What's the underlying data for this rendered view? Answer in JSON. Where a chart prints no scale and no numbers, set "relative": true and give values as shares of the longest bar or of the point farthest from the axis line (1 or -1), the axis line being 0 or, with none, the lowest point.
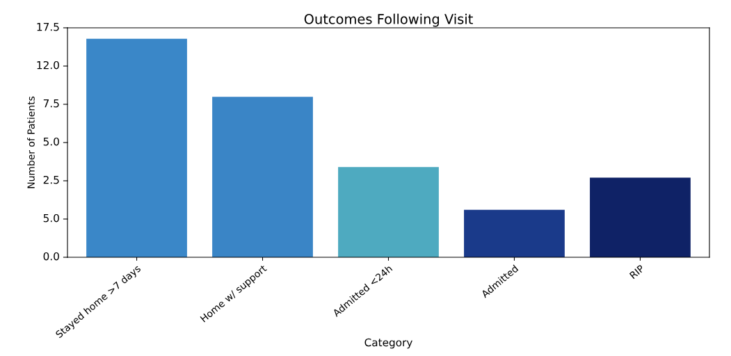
{
  "chart_data": {
    "type": "bar",
    "title": "Outcomes Following Visit",
    "xlabel": "Category",
    "ylabel": "Number of Patients",
    "categories": [
      "Stayed home >7 days",
      "Home w/ support",
      "Admitted <24h",
      "Admitted",
      "RIP"
    ],
    "values": [
      1,
      0.734,
      0.413,
      0.217,
      0.364
    ],
    "relative": true,
    "colors": [
      "#3a87c8",
      "#3a85c6",
      "#4eaac0",
      "#1a3a8a",
      "#0f2266"
    ],
    "annotations": [
      "0.0",
      "5.0",
      "2.5",
      "5.0",
      "7.5",
      "12.0",
      "17.5"
    ]
  }
}
